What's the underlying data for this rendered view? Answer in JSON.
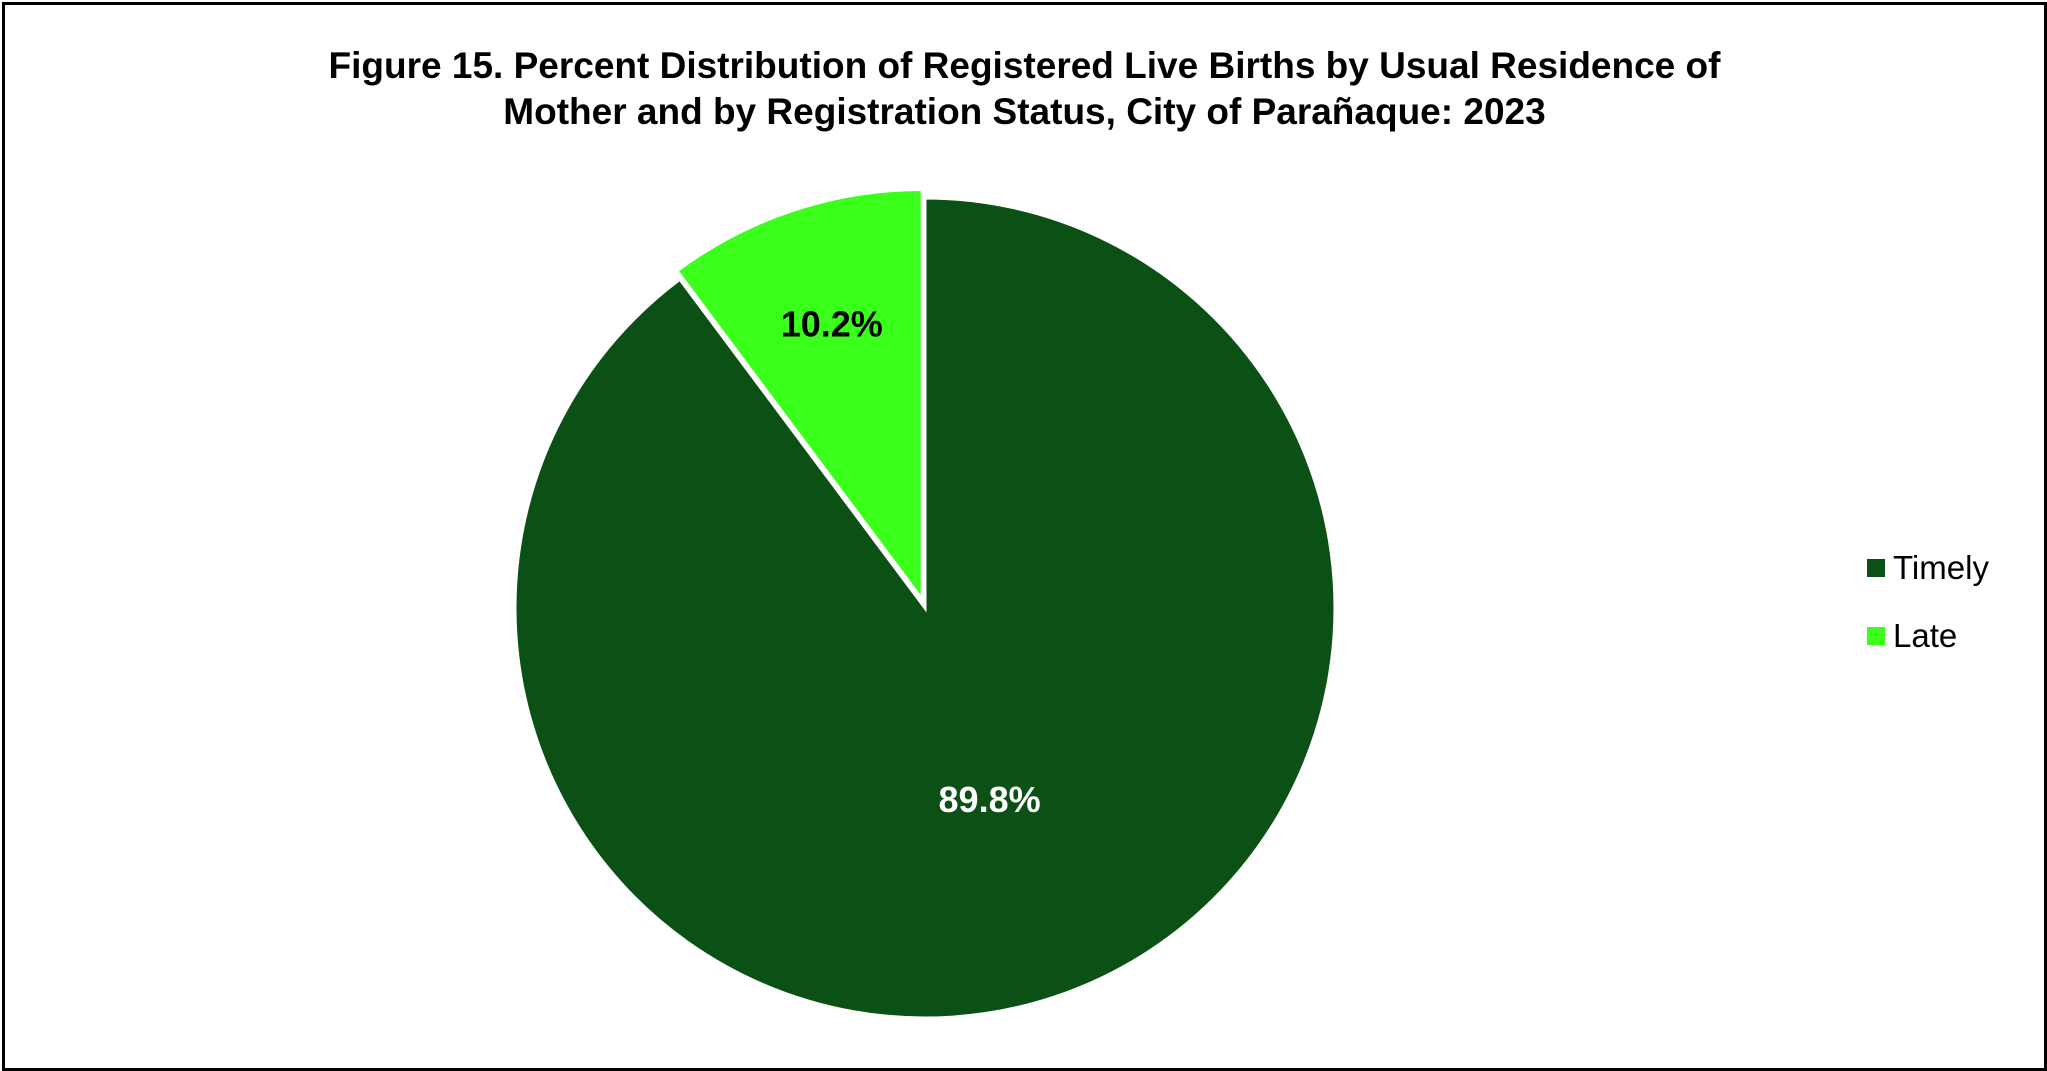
{
  "chart_data": {
    "type": "pie",
    "title": "Figure 15. Percent Distribution of Registered Live Births by Usual Residence of Mother and by Registration Status, City of Parañaque: 2023",
    "title_lines": [
      "Figure 15. Percent Distribution of Registered Live Births by Usual Residence of",
      "Mother and by Registration Status, City of Parañaque: 2023"
    ],
    "slices": [
      {
        "label": "Timely",
        "value": 89.8,
        "display": "89.8%",
        "color": "#0b5116",
        "label_color": "#ffffff"
      },
      {
        "label": "Late",
        "value": 10.2,
        "display": "10.2%",
        "color": "#3aff1b",
        "label_color": "#000000"
      }
    ],
    "legend_position": "right",
    "exploded_slice": "Late"
  }
}
